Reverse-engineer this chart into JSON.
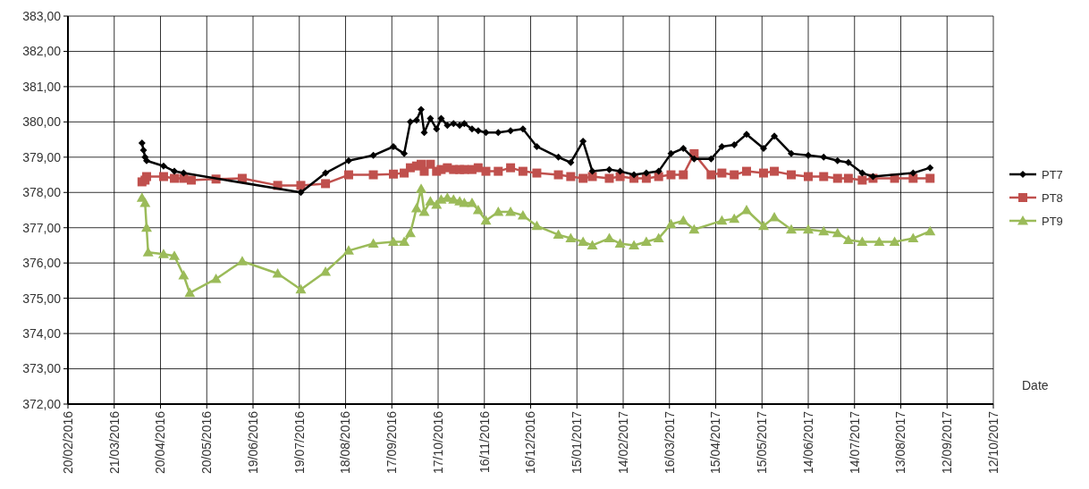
{
  "chart_data": {
    "type": "line",
    "xlabel": "Date",
    "legend": "right",
    "grid": true,
    "xlim": [
      "2016-02-20",
      "2017-10-12"
    ],
    "xticks": [
      {
        "value": "2016-02-20",
        "label": "20/02/2016"
      },
      {
        "value": "2016-03-21",
        "label": "21/03/2016"
      },
      {
        "value": "2016-04-20",
        "label": "20/04/2016"
      },
      {
        "value": "2016-05-20",
        "label": "20/05/2016"
      },
      {
        "value": "2016-06-19",
        "label": "19/06/2016"
      },
      {
        "value": "2016-07-19",
        "label": "19/07/2016"
      },
      {
        "value": "2016-08-18",
        "label": "18/08/2016"
      },
      {
        "value": "2016-09-17",
        "label": "17/09/2016"
      },
      {
        "value": "2016-10-17",
        "label": "17/10/2016"
      },
      {
        "value": "2016-11-16",
        "label": "16/11/2016"
      },
      {
        "value": "2016-12-16",
        "label": "16/12/2016"
      },
      {
        "value": "2017-01-15",
        "label": "15/01/2017"
      },
      {
        "value": "2017-02-14",
        "label": "14/02/2017"
      },
      {
        "value": "2017-03-16",
        "label": "16/03/2017"
      },
      {
        "value": "2017-04-15",
        "label": "15/04/2017"
      },
      {
        "value": "2017-05-15",
        "label": "15/05/2017"
      },
      {
        "value": "2017-06-14",
        "label": "14/06/2017"
      },
      {
        "value": "2017-07-14",
        "label": "14/07/2017"
      },
      {
        "value": "2017-08-13",
        "label": "13/08/2017"
      },
      {
        "value": "2017-09-12",
        "label": "12/09/2017"
      },
      {
        "value": "2017-10-12",
        "label": "12/10/2017"
      }
    ],
    "ylim": [
      372,
      383
    ],
    "yticks": [
      {
        "value": 372,
        "label": "372,00"
      },
      {
        "value": 373,
        "label": "373,00"
      },
      {
        "value": 374,
        "label": "374,00"
      },
      {
        "value": 375,
        "label": "375,00"
      },
      {
        "value": 376,
        "label": "376,00"
      },
      {
        "value": 377,
        "label": "377,00"
      },
      {
        "value": 378,
        "label": "378,00"
      },
      {
        "value": 379,
        "label": "379,00"
      },
      {
        "value": 380,
        "label": "380,00"
      },
      {
        "value": 381,
        "label": "381,00"
      },
      {
        "value": 382,
        "label": "382,00"
      },
      {
        "value": 383,
        "label": "383,00"
      }
    ],
    "series": [
      {
        "name": "PT7",
        "color": "#000000",
        "marker": "diamond",
        "x": [
          "2016-04-08",
          "2016-04-09",
          "2016-04-10",
          "2016-04-11",
          "2016-04-22",
          "2016-04-29",
          "2016-05-05",
          "2016-07-20",
          "2016-08-05",
          "2016-08-20",
          "2016-09-05",
          "2016-09-18",
          "2016-09-25",
          "2016-09-29",
          "2016-10-03",
          "2016-10-06",
          "2016-10-08",
          "2016-10-12",
          "2016-10-16",
          "2016-10-19",
          "2016-10-23",
          "2016-10-27",
          "2016-10-31",
          "2016-11-03",
          "2016-11-08",
          "2016-11-12",
          "2016-11-17",
          "2016-11-25",
          "2016-12-03",
          "2016-12-11",
          "2016-12-20",
          "2017-01-03",
          "2017-01-11",
          "2017-01-19",
          "2017-01-25",
          "2017-02-05",
          "2017-02-12",
          "2017-02-21",
          "2017-03-01",
          "2017-03-09",
          "2017-03-17",
          "2017-03-25",
          "2017-04-01",
          "2017-04-12",
          "2017-04-19",
          "2017-04-27",
          "2017-05-05",
          "2017-05-16",
          "2017-05-23",
          "2017-06-03",
          "2017-06-14",
          "2017-06-24",
          "2017-07-03",
          "2017-07-10",
          "2017-07-19",
          "2017-07-26",
          "2017-08-21",
          "2017-09-01"
        ],
        "values": [
          379.4,
          379.2,
          379.0,
          378.9,
          378.75,
          378.6,
          378.55,
          378.0,
          378.55,
          378.9,
          379.05,
          379.3,
          379.1,
          380.0,
          380.05,
          380.35,
          379.7,
          380.1,
          379.8,
          380.1,
          379.9,
          379.95,
          379.9,
          379.95,
          379.8,
          379.75,
          379.7,
          379.7,
          379.75,
          379.8,
          379.3,
          379.0,
          378.85,
          379.45,
          378.6,
          378.65,
          378.6,
          378.5,
          378.55,
          378.6,
          379.1,
          379.25,
          378.95,
          378.95,
          379.3,
          379.35,
          379.65,
          379.25,
          379.6,
          379.1,
          379.05,
          379.0,
          378.9,
          378.85,
          378.55,
          378.45,
          378.55,
          378.7
        ]
      },
      {
        "name": "PT8",
        "color": "#c0504d",
        "marker": "square",
        "x": [
          "2016-04-08",
          "2016-04-10",
          "2016-04-11",
          "2016-04-22",
          "2016-04-29",
          "2016-05-05",
          "2016-05-10",
          "2016-05-26",
          "2016-06-12",
          "2016-07-05",
          "2016-07-20",
          "2016-08-05",
          "2016-08-20",
          "2016-09-05",
          "2016-09-18",
          "2016-09-25",
          "2016-09-29",
          "2016-10-03",
          "2016-10-06",
          "2016-10-08",
          "2016-10-12",
          "2016-10-16",
          "2016-10-19",
          "2016-10-23",
          "2016-10-27",
          "2016-10-31",
          "2016-11-03",
          "2016-11-08",
          "2016-11-12",
          "2016-11-17",
          "2016-11-25",
          "2016-12-03",
          "2016-12-11",
          "2016-12-20",
          "2017-01-03",
          "2017-01-11",
          "2017-01-19",
          "2017-01-25",
          "2017-02-05",
          "2017-02-12",
          "2017-02-21",
          "2017-03-01",
          "2017-03-09",
          "2017-03-17",
          "2017-03-25",
          "2017-04-01",
          "2017-04-12",
          "2017-04-19",
          "2017-04-27",
          "2017-05-05",
          "2017-05-16",
          "2017-05-23",
          "2017-06-03",
          "2017-06-14",
          "2017-06-24",
          "2017-07-03",
          "2017-07-10",
          "2017-07-19",
          "2017-07-26",
          "2017-08-09",
          "2017-08-21",
          "2017-09-01"
        ],
        "values": [
          378.3,
          378.35,
          378.45,
          378.45,
          378.4,
          378.4,
          378.35,
          378.38,
          378.4,
          378.2,
          378.2,
          378.25,
          378.5,
          378.5,
          378.52,
          378.55,
          378.7,
          378.75,
          378.8,
          378.6,
          378.8,
          378.6,
          378.65,
          378.7,
          378.65,
          378.65,
          378.65,
          378.65,
          378.7,
          378.6,
          378.6,
          378.7,
          378.6,
          378.55,
          378.5,
          378.45,
          378.4,
          378.45,
          378.4,
          378.45,
          378.4,
          378.4,
          378.45,
          378.5,
          378.5,
          379.1,
          378.5,
          378.55,
          378.5,
          378.6,
          378.55,
          378.6,
          378.5,
          378.45,
          378.45,
          378.4,
          378.4,
          378.35,
          378.4,
          378.4,
          378.4,
          378.4
        ]
      },
      {
        "name": "PT9",
        "color": "#9bbb59",
        "marker": "triangle",
        "x": [
          "2016-04-08",
          "2016-04-10",
          "2016-04-11",
          "2016-04-12",
          "2016-04-22",
          "2016-04-29",
          "2016-05-05",
          "2016-05-09",
          "2016-05-26",
          "2016-06-12",
          "2016-07-05",
          "2016-07-20",
          "2016-08-05",
          "2016-08-20",
          "2016-09-05",
          "2016-09-18",
          "2016-09-25",
          "2016-09-29",
          "2016-10-03",
          "2016-10-06",
          "2016-10-08",
          "2016-10-12",
          "2016-10-16",
          "2016-10-19",
          "2016-10-23",
          "2016-10-27",
          "2016-10-31",
          "2016-11-03",
          "2016-11-08",
          "2016-11-12",
          "2016-11-17",
          "2016-11-25",
          "2016-12-03",
          "2016-12-11",
          "2016-12-20",
          "2017-01-03",
          "2017-01-11",
          "2017-01-19",
          "2017-01-25",
          "2017-02-05",
          "2017-02-12",
          "2017-02-21",
          "2017-03-01",
          "2017-03-09",
          "2017-03-17",
          "2017-03-25",
          "2017-04-01",
          "2017-04-19",
          "2017-04-27",
          "2017-05-05",
          "2017-05-16",
          "2017-05-23",
          "2017-06-03",
          "2017-06-14",
          "2017-06-24",
          "2017-07-03",
          "2017-07-10",
          "2017-07-19",
          "2017-07-30",
          "2017-08-09",
          "2017-08-21",
          "2017-09-01"
        ],
        "values": [
          377.85,
          377.7,
          377.0,
          376.3,
          376.25,
          376.2,
          375.65,
          375.15,
          375.55,
          376.05,
          375.7,
          375.25,
          375.75,
          376.35,
          376.55,
          376.6,
          376.6,
          376.85,
          377.55,
          378.1,
          377.45,
          377.75,
          377.65,
          377.8,
          377.85,
          377.8,
          377.75,
          377.7,
          377.7,
          377.5,
          377.2,
          377.45,
          377.45,
          377.35,
          377.05,
          376.8,
          376.7,
          376.6,
          376.5,
          376.7,
          376.55,
          376.5,
          376.6,
          376.7,
          377.1,
          377.2,
          376.95,
          377.2,
          377.25,
          377.5,
          377.05,
          377.3,
          376.95,
          376.95,
          376.9,
          376.85,
          376.65,
          376.6,
          376.6,
          376.6,
          376.7,
          376.9
        ]
      }
    ]
  }
}
